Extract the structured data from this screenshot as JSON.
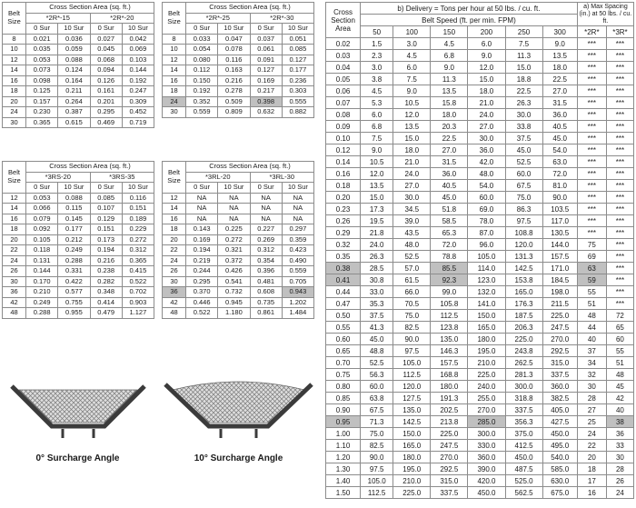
{
  "colors": {
    "highlight_gray": "#c0c0c0"
  },
  "left_tables": [
    {
      "title": "Cross Section Area (sq. ft.)",
      "belt_size_label": "Belt Size",
      "groups": [
        "*2R*-15",
        "*2R*-20"
      ],
      "sub_headers": [
        "0 Sur",
        "10 Sur",
        "0 Sur",
        "10 Sur"
      ],
      "rows": [
        [
          "8",
          "0.021",
          "0.036",
          "0.027",
          "0.042"
        ],
        [
          "10",
          "0.035",
          "0.059",
          "0.045",
          "0.069"
        ],
        [
          "12",
          "0.053",
          "0.088",
          "0.068",
          "0.103"
        ],
        [
          "14",
          "0.073",
          "0.124",
          "0.094",
          "0.144"
        ],
        [
          "16",
          "0.098",
          "0.164",
          "0.126",
          "0.192"
        ],
        [
          "18",
          "0.125",
          "0.211",
          "0.161",
          "0.247"
        ],
        [
          "20",
          "0.157",
          "0.264",
          "0.201",
          "0.309"
        ],
        [
          "24",
          "0.230",
          "0.387",
          "0.295",
          "0.452"
        ],
        [
          "30",
          "0.365",
          "0.615",
          "0.469",
          "0.719"
        ]
      ],
      "highlights": []
    },
    {
      "title": "Cross Section Area (sq. ft.)",
      "belt_size_label": "Belt Size",
      "groups": [
        "*2R*-25",
        "*2R*-30"
      ],
      "sub_headers": [
        "0 Sur",
        "10 Sur",
        "0 Sur",
        "10 Sur"
      ],
      "rows": [
        [
          "8",
          "0.033",
          "0.047",
          "0.037",
          "0.051"
        ],
        [
          "10",
          "0.054",
          "0.078",
          "0.061",
          "0.085"
        ],
        [
          "12",
          "0.080",
          "0.116",
          "0.091",
          "0.127"
        ],
        [
          "14",
          "0.112",
          "0.163",
          "0.127",
          "0.177"
        ],
        [
          "16",
          "0.150",
          "0.216",
          "0.169",
          "0.236"
        ],
        [
          "18",
          "0.192",
          "0.278",
          "0.217",
          "0.303"
        ],
        [
          "24",
          "0.352",
          "0.509",
          "0.398",
          "0.555"
        ],
        [
          "30",
          "0.559",
          "0.809",
          "0.632",
          "0.882"
        ]
      ],
      "highlights": [
        [
          6,
          0
        ],
        [
          6,
          3
        ]
      ]
    },
    {
      "title": "Cross Section Area (sq. ft.)",
      "belt_size_label": "Belt Size",
      "groups": [
        "*3RS-20",
        "*3RS-35"
      ],
      "sub_headers": [
        "0 Sur",
        "10 Sur",
        "0 Sur",
        "10 Sur"
      ],
      "rows": [
        [
          "12",
          "0.053",
          "0.088",
          "0.085",
          "0.116"
        ],
        [
          "14",
          "0.066",
          "0.115",
          "0.107",
          "0.151"
        ],
        [
          "16",
          "0.079",
          "0.145",
          "0.129",
          "0.189"
        ],
        [
          "18",
          "0.092",
          "0.177",
          "0.151",
          "0.229"
        ],
        [
          "20",
          "0.105",
          "0.212",
          "0.173",
          "0.272"
        ],
        [
          "22",
          "0.118",
          "0.249",
          "0.194",
          "0.312"
        ],
        [
          "24",
          "0.131",
          "0.288",
          "0.216",
          "0.365"
        ],
        [
          "26",
          "0.144",
          "0.331",
          "0.238",
          "0.415"
        ],
        [
          "30",
          "0.170",
          "0.422",
          "0.282",
          "0.522"
        ],
        [
          "36",
          "0.210",
          "0.577",
          "0.348",
          "0.702"
        ],
        [
          "42",
          "0.249",
          "0.755",
          "0.414",
          "0.903"
        ],
        [
          "48",
          "0.288",
          "0.955",
          "0.479",
          "1.127"
        ]
      ],
      "highlights": []
    },
    {
      "title": "Cross Section Area (sq. ft.)",
      "belt_size_label": "Belt Size",
      "groups": [
        "*3RL-20",
        "*3RL-30"
      ],
      "sub_headers": [
        "0 Sur",
        "10 Sur",
        "0 Sur",
        "10 Sur"
      ],
      "rows": [
        [
          "12",
          "NA",
          "NA",
          "NA",
          "NA"
        ],
        [
          "14",
          "NA",
          "NA",
          "NA",
          "NA"
        ],
        [
          "16",
          "NA",
          "NA",
          "NA",
          "NA"
        ],
        [
          "18",
          "0.143",
          "0.225",
          "0.227",
          "0.297"
        ],
        [
          "20",
          "0.169",
          "0.272",
          "0.269",
          "0.359"
        ],
        [
          "22",
          "0.194",
          "0.321",
          "0.312",
          "0.423"
        ],
        [
          "24",
          "0.219",
          "0.372",
          "0.354",
          "0.490"
        ],
        [
          "26",
          "0.244",
          "0.426",
          "0.396",
          "0.559"
        ],
        [
          "30",
          "0.295",
          "0.541",
          "0.481",
          "0.705"
        ],
        [
          "36",
          "0.370",
          "0.732",
          "0.608",
          "0.943"
        ],
        [
          "42",
          "0.446",
          "0.945",
          "0.735",
          "1.202"
        ],
        [
          "48",
          "0.522",
          "1.180",
          "0.861",
          "1.484"
        ]
      ],
      "highlights": [
        [
          9,
          0
        ],
        [
          9,
          4
        ]
      ]
    }
  ],
  "diagrams": [
    {
      "label": "0° Surcharge Angle"
    },
    {
      "label": "10° Surcharge Angle"
    }
  ],
  "right_table": {
    "area_header": "Cross Section Area",
    "delivery_header": "b) Delivery = Tons per hour at 50 lbs. / cu. ft.",
    "belt_speed_header": "Belt Speed (ft. per min. FPM)",
    "max_spacing_header": "a) Max Spacing (in.) at 50 lbs. / cu. ft.",
    "col_headers": [
      "50",
      "100",
      "150",
      "200",
      "250",
      "300",
      "*2R*",
      "*3R*"
    ],
    "rows": [
      [
        "0.02",
        "1.5",
        "3.0",
        "4.5",
        "6.0",
        "7.5",
        "9.0",
        "***",
        "***"
      ],
      [
        "0.03",
        "2.3",
        "4.5",
        "6.8",
        "9.0",
        "11.3",
        "13.5",
        "***",
        "***"
      ],
      [
        "0.04",
        "3.0",
        "6.0",
        "9.0",
        "12.0",
        "15.0",
        "18.0",
        "***",
        "***"
      ],
      [
        "0.05",
        "3.8",
        "7.5",
        "11.3",
        "15.0",
        "18.8",
        "22.5",
        "***",
        "***"
      ],
      [
        "0.06",
        "4.5",
        "9.0",
        "13.5",
        "18.0",
        "22.5",
        "27.0",
        "***",
        "***"
      ],
      [
        "0.07",
        "5.3",
        "10.5",
        "15.8",
        "21.0",
        "26.3",
        "31.5",
        "***",
        "***"
      ],
      [
        "0.08",
        "6.0",
        "12.0",
        "18.0",
        "24.0",
        "30.0",
        "36.0",
        "***",
        "***"
      ],
      [
        "0.09",
        "6.8",
        "13.5",
        "20.3",
        "27.0",
        "33.8",
        "40.5",
        "***",
        "***"
      ],
      [
        "0.10",
        "7.5",
        "15.0",
        "22.5",
        "30.0",
        "37.5",
        "45.0",
        "***",
        "***"
      ],
      [
        "0.12",
        "9.0",
        "18.0",
        "27.0",
        "36.0",
        "45.0",
        "54.0",
        "***",
        "***"
      ],
      [
        "0.14",
        "10.5",
        "21.0",
        "31.5",
        "42.0",
        "52.5",
        "63.0",
        "***",
        "***"
      ],
      [
        "0.16",
        "12.0",
        "24.0",
        "36.0",
        "48.0",
        "60.0",
        "72.0",
        "***",
        "***"
      ],
      [
        "0.18",
        "13.5",
        "27.0",
        "40.5",
        "54.0",
        "67.5",
        "81.0",
        "***",
        "***"
      ],
      [
        "0.20",
        "15.0",
        "30.0",
        "45.0",
        "60.0",
        "75.0",
        "90.0",
        "***",
        "***"
      ],
      [
        "0.23",
        "17.3",
        "34.5",
        "51.8",
        "69.0",
        "86.3",
        "103.5",
        "***",
        "***"
      ],
      [
        "0.26",
        "19.5",
        "39.0",
        "58.5",
        "78.0",
        "97.5",
        "117.0",
        "***",
        "***"
      ],
      [
        "0.29",
        "21.8",
        "43.5",
        "65.3",
        "87.0",
        "108.8",
        "130.5",
        "***",
        "***"
      ],
      [
        "0.32",
        "24.0",
        "48.0",
        "72.0",
        "96.0",
        "120.0",
        "144.0",
        "75",
        "***"
      ],
      [
        "0.35",
        "26.3",
        "52.5",
        "78.8",
        "105.0",
        "131.3",
        "157.5",
        "69",
        "***"
      ],
      [
        "0.38",
        "28.5",
        "57.0",
        "85.5",
        "114.0",
        "142.5",
        "171.0",
        "63",
        "***"
      ],
      [
        "0.41",
        "30.8",
        "61.5",
        "92.3",
        "123.0",
        "153.8",
        "184.5",
        "59",
        "***"
      ],
      [
        "0.44",
        "33.0",
        "66.0",
        "99.0",
        "132.0",
        "165.0",
        "198.0",
        "55",
        "***"
      ],
      [
        "0.47",
        "35.3",
        "70.5",
        "105.8",
        "141.0",
        "176.3",
        "211.5",
        "51",
        "***"
      ],
      [
        "0.50",
        "37.5",
        "75.0",
        "112.5",
        "150.0",
        "187.5",
        "225.0",
        "48",
        "72"
      ],
      [
        "0.55",
        "41.3",
        "82.5",
        "123.8",
        "165.0",
        "206.3",
        "247.5",
        "44",
        "65"
      ],
      [
        "0.60",
        "45.0",
        "90.0",
        "135.0",
        "180.0",
        "225.0",
        "270.0",
        "40",
        "60"
      ],
      [
        "0.65",
        "48.8",
        "97.5",
        "146.3",
        "195.0",
        "243.8",
        "292.5",
        "37",
        "55"
      ],
      [
        "0.70",
        "52.5",
        "105.0",
        "157.5",
        "210.0",
        "262.5",
        "315.0",
        "34",
        "51"
      ],
      [
        "0.75",
        "56.3",
        "112.5",
        "168.8",
        "225.0",
        "281.3",
        "337.5",
        "32",
        "48"
      ],
      [
        "0.80",
        "60.0",
        "120.0",
        "180.0",
        "240.0",
        "300.0",
        "360.0",
        "30",
        "45"
      ],
      [
        "0.85",
        "63.8",
        "127.5",
        "191.3",
        "255.0",
        "318.8",
        "382.5",
        "28",
        "42"
      ],
      [
        "0.90",
        "67.5",
        "135.0",
        "202.5",
        "270.0",
        "337.5",
        "405.0",
        "27",
        "40"
      ],
      [
        "0.95",
        "71.3",
        "142.5",
        "213.8",
        "285.0",
        "356.3",
        "427.5",
        "25",
        "38"
      ],
      [
        "1.00",
        "75.0",
        "150.0",
        "225.0",
        "300.0",
        "375.0",
        "450.0",
        "24",
        "36"
      ],
      [
        "1.10",
        "82.5",
        "165.0",
        "247.5",
        "330.0",
        "412.5",
        "495.0",
        "22",
        "33"
      ],
      [
        "1.20",
        "90.0",
        "180.0",
        "270.0",
        "360.0",
        "450.0",
        "540.0",
        "20",
        "30"
      ],
      [
        "1.30",
        "97.5",
        "195.0",
        "292.5",
        "390.0",
        "487.5",
        "585.0",
        "18",
        "28"
      ],
      [
        "1.40",
        "105.0",
        "210.0",
        "315.0",
        "420.0",
        "525.0",
        "630.0",
        "17",
        "26"
      ],
      [
        "1.50",
        "112.5",
        "225.0",
        "337.5",
        "450.0",
        "562.5",
        "675.0",
        "16",
        "24"
      ]
    ],
    "highlights": [
      [
        19,
        0
      ],
      [
        19,
        3
      ],
      [
        19,
        7
      ],
      [
        20,
        0
      ],
      [
        20,
        3
      ],
      [
        20,
        7
      ],
      [
        32,
        0
      ],
      [
        32,
        4
      ],
      [
        32,
        8
      ]
    ]
  }
}
